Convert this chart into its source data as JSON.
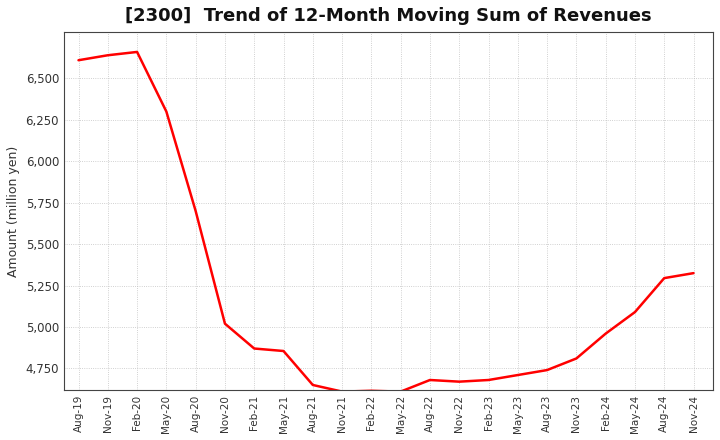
{
  "title": "[2300]  Trend of 12-Month Moving Sum of Revenues",
  "ylabel": "Amount (million yen)",
  "line_color": "#FF0000",
  "background_color": "#FFFFFF",
  "grid_color": "#BBBBBB",
  "x_labels": [
    "Aug-19",
    "Nov-19",
    "Feb-20",
    "May-20",
    "Aug-20",
    "Nov-20",
    "Feb-21",
    "May-21",
    "Aug-21",
    "Nov-21",
    "Feb-22",
    "May-22",
    "Aug-22",
    "Nov-22",
    "Feb-23",
    "May-23",
    "Aug-23",
    "Nov-23",
    "Feb-24",
    "May-24",
    "Aug-24",
    "Nov-24"
  ],
  "x_values": [
    0,
    3,
    6,
    9,
    12,
    15,
    18,
    21,
    24,
    27,
    30,
    33,
    36,
    39,
    42,
    45,
    48,
    51,
    54,
    57,
    60,
    63
  ],
  "y_values": [
    6610,
    6640,
    6660,
    6300,
    5700,
    5020,
    4870,
    4855,
    4650,
    4610,
    4615,
    4610,
    4680,
    4670,
    4680,
    4710,
    4740,
    4810,
    4960,
    5090,
    5295,
    5325
  ],
  "ylim_min": 4620,
  "ylim_max": 6780,
  "yticks": [
    4750,
    5000,
    5250,
    5500,
    5750,
    6000,
    6250,
    6500
  ],
  "line_width": 1.8,
  "title_fontsize": 13,
  "ylabel_fontsize": 9,
  "tick_fontsize": 8.5,
  "xtick_fontsize": 7.5
}
